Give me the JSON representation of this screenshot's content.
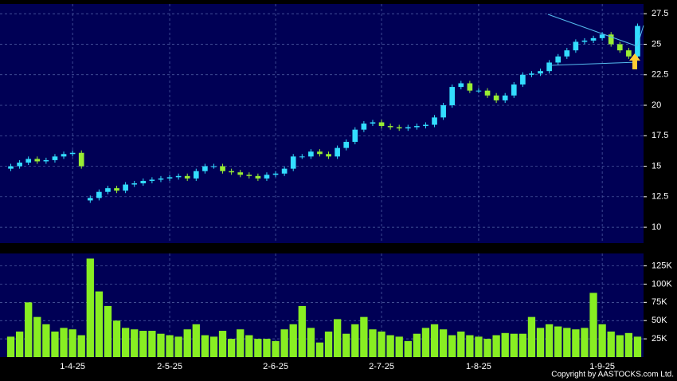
{
  "chart_data": [
    {
      "type": "candlestick",
      "up_color": "#33ddff",
      "down_color": "#99ee33",
      "background": "#000055",
      "grid": true,
      "ylim": [
        8.7,
        28.3
      ],
      "yticks": [
        10,
        12.5,
        15,
        17.5,
        20,
        22.5,
        25,
        27.5
      ],
      "open": [
        14.8,
        15.0,
        15.3,
        15.6,
        15.4,
        15.5,
        15.8,
        16.0,
        16.1,
        12.2,
        12.4,
        12.9,
        13.2,
        13.0,
        13.5,
        13.6,
        13.8,
        13.9,
        14.0,
        14.1,
        14.2,
        14.0,
        14.6,
        15.0,
        15.0,
        14.6,
        14.5,
        14.3,
        14.2,
        14.0,
        14.3,
        14.4,
        14.8,
        15.8,
        15.8,
        16.2,
        16.0,
        15.8,
        16.5,
        17.0,
        18.0,
        18.5,
        18.6,
        18.3,
        18.2,
        18.1,
        18.2,
        18.3,
        18.4,
        19.0,
        20.0,
        21.5,
        21.8,
        21.2,
        21.2,
        20.8,
        20.4,
        20.8,
        21.7,
        22.5,
        22.6,
        22.8,
        23.5,
        24.0,
        24.5,
        25.2,
        25.3,
        25.5,
        25.8,
        25.0,
        24.5,
        24.0
      ],
      "high": [
        15.2,
        15.5,
        15.8,
        15.8,
        15.7,
        16.0,
        16.2,
        16.3,
        16.3,
        12.6,
        13.1,
        13.4,
        13.4,
        13.7,
        13.8,
        14.0,
        14.1,
        14.2,
        14.3,
        14.4,
        14.4,
        14.8,
        15.2,
        15.2,
        15.2,
        14.8,
        14.7,
        14.5,
        14.4,
        14.5,
        14.6,
        15.0,
        16.0,
        16.0,
        16.4,
        16.4,
        16.2,
        16.7,
        17.2,
        18.2,
        18.7,
        18.8,
        18.8,
        18.5,
        18.4,
        18.4,
        18.5,
        18.6,
        19.2,
        20.2,
        21.7,
        22.0,
        22.0,
        21.4,
        21.4,
        21.0,
        21.0,
        21.9,
        22.7,
        22.8,
        23.0,
        23.7,
        24.2,
        24.7,
        25.4,
        25.5,
        25.7,
        26.0,
        26.0,
        25.2,
        24.7,
        26.7
      ],
      "low": [
        14.6,
        14.8,
        15.1,
        15.2,
        15.2,
        15.3,
        15.6,
        15.8,
        14.8,
        12.0,
        12.2,
        12.7,
        12.8,
        12.8,
        13.3,
        13.4,
        13.6,
        13.7,
        13.8,
        13.9,
        13.8,
        13.8,
        14.4,
        14.8,
        14.4,
        14.3,
        14.1,
        14.0,
        13.8,
        13.8,
        14.1,
        14.2,
        14.6,
        15.6,
        15.6,
        15.8,
        15.6,
        15.6,
        16.3,
        16.8,
        17.8,
        18.3,
        18.1,
        18.0,
        17.9,
        17.9,
        18.0,
        18.1,
        18.2,
        18.8,
        19.8,
        21.3,
        21.0,
        21.0,
        20.6,
        20.2,
        20.2,
        20.6,
        21.5,
        22.3,
        22.4,
        22.6,
        23.3,
        23.8,
        24.3,
        25.0,
        25.1,
        25.3,
        24.8,
        24.3,
        23.8,
        23.8
      ],
      "close": [
        15.0,
        15.3,
        15.6,
        15.4,
        15.5,
        15.8,
        16.0,
        16.1,
        15.0,
        12.4,
        12.9,
        13.2,
        13.0,
        13.5,
        13.6,
        13.8,
        13.9,
        14.0,
        14.1,
        14.2,
        14.0,
        14.6,
        15.0,
        15.0,
        14.6,
        14.5,
        14.3,
        14.2,
        14.0,
        14.3,
        14.4,
        14.8,
        15.8,
        15.8,
        16.2,
        16.0,
        15.8,
        16.5,
        17.0,
        18.0,
        18.5,
        18.6,
        18.3,
        18.2,
        18.1,
        18.2,
        18.3,
        18.4,
        19.0,
        20.0,
        21.5,
        21.8,
        21.2,
        21.2,
        20.8,
        20.4,
        20.8,
        21.7,
        22.5,
        22.6,
        22.8,
        23.5,
        24.0,
        24.5,
        25.2,
        25.3,
        25.5,
        25.8,
        25.0,
        24.5,
        24.0,
        26.5
      ]
    },
    {
      "type": "bar",
      "color": "#88ee22",
      "background": "#000055",
      "grid": true,
      "ylim": [
        0,
        142000
      ],
      "yticks": [
        {
          "value": 25000,
          "label": "25K"
        },
        {
          "value": 50000,
          "label": "50K"
        },
        {
          "value": 75000,
          "label": "75K"
        },
        {
          "value": 100000,
          "label": "100K"
        },
        {
          "value": 125000,
          "label": "125K"
        }
      ],
      "categories": [
        null,
        null,
        null,
        null,
        null,
        null,
        null,
        "1-4-25",
        null,
        null,
        null,
        null,
        null,
        null,
        null,
        null,
        null,
        null,
        "2-5-25",
        null,
        null,
        null,
        null,
        null,
        null,
        null,
        null,
        null,
        null,
        null,
        "2-6-25",
        null,
        null,
        null,
        null,
        null,
        null,
        null,
        null,
        null,
        null,
        null,
        "2-7-25",
        null,
        null,
        null,
        null,
        null,
        null,
        null,
        null,
        null,
        null,
        "1-8-25",
        null,
        null,
        null,
        null,
        null,
        null,
        null,
        null,
        null,
        null,
        null,
        null,
        null,
        "1-9-25",
        null,
        null,
        null,
        null
      ],
      "values": [
        28000,
        35000,
        75000,
        55000,
        45000,
        35000,
        40000,
        38000,
        30000,
        135000,
        90000,
        70000,
        50000,
        40000,
        38000,
        36000,
        36000,
        32000,
        30000,
        28000,
        38000,
        45000,
        30000,
        28000,
        36000,
        25000,
        38000,
        30000,
        25000,
        25000,
        22000,
        38000,
        45000,
        70000,
        40000,
        20000,
        35000,
        52000,
        32000,
        45000,
        55000,
        38000,
        35000,
        30000,
        28000,
        22000,
        32000,
        40000,
        45000,
        38000,
        30000,
        35000,
        30000,
        28000,
        25000,
        30000,
        33000,
        32000,
        32000,
        55000,
        40000,
        45000,
        42000,
        40000,
        38000,
        40000,
        88000,
        45000,
        35000,
        30000,
        33000,
        28000
      ]
    }
  ],
  "footer": "Copyright by AASTOCKS.com Ltd."
}
